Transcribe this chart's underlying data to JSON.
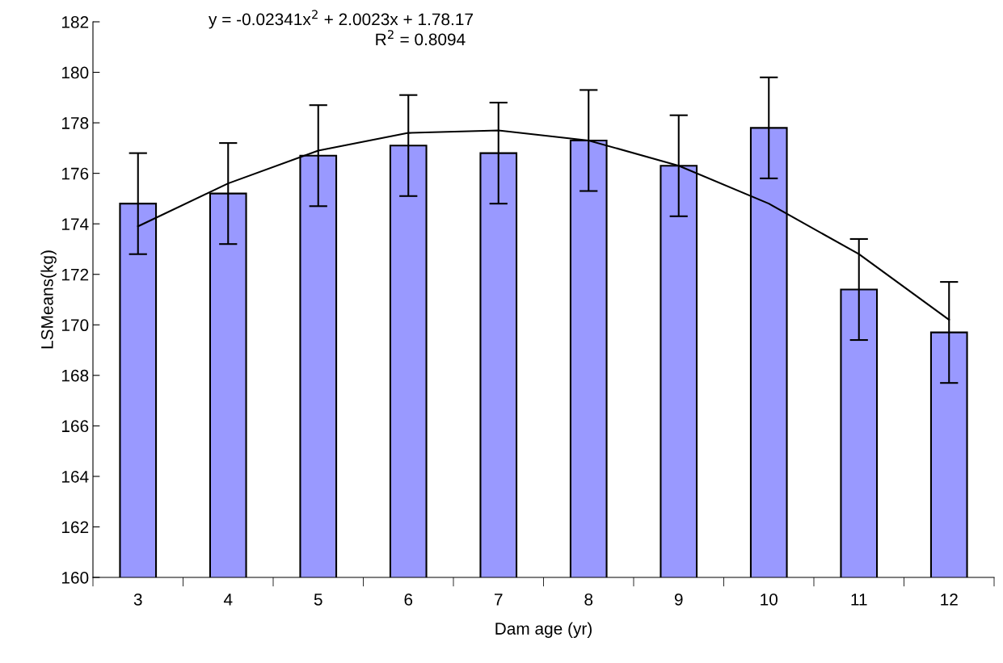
{
  "chart_data": {
    "type": "bar",
    "xlabel": "Dam age (yr)",
    "ylabel": "LSMeans(kg)",
    "categories": [
      "3",
      "4",
      "5",
      "6",
      "7",
      "8",
      "9",
      "10",
      "11",
      "12"
    ],
    "series": [
      {
        "color": "#9999ff",
        "values": [
          174.8,
          175.2,
          176.7,
          177.1,
          176.8,
          177.3,
          176.3,
          177.8,
          171.4,
          169.7
        ],
        "errors": [
          2,
          2,
          2,
          2,
          2,
          2,
          2,
          2,
          2,
          2
        ]
      },
      {
        "type": "line",
        "color": "#000000",
        "values": [
          173.9,
          175.6,
          176.9,
          177.6,
          177.7,
          177.3,
          176.3,
          174.8,
          172.8,
          170.2
        ]
      }
    ],
    "ylim": [
      160,
      182
    ],
    "yticks": [
      160,
      162,
      164,
      166,
      168,
      170,
      172,
      174,
      176,
      178,
      180,
      182
    ],
    "annotations": [
      "y = -0.02341x$^{2}$ + 2.0023x + 1.78.17",
      "R$^{2}$ = 0.8094"
    ],
    "grid": false,
    "legend": false
  }
}
